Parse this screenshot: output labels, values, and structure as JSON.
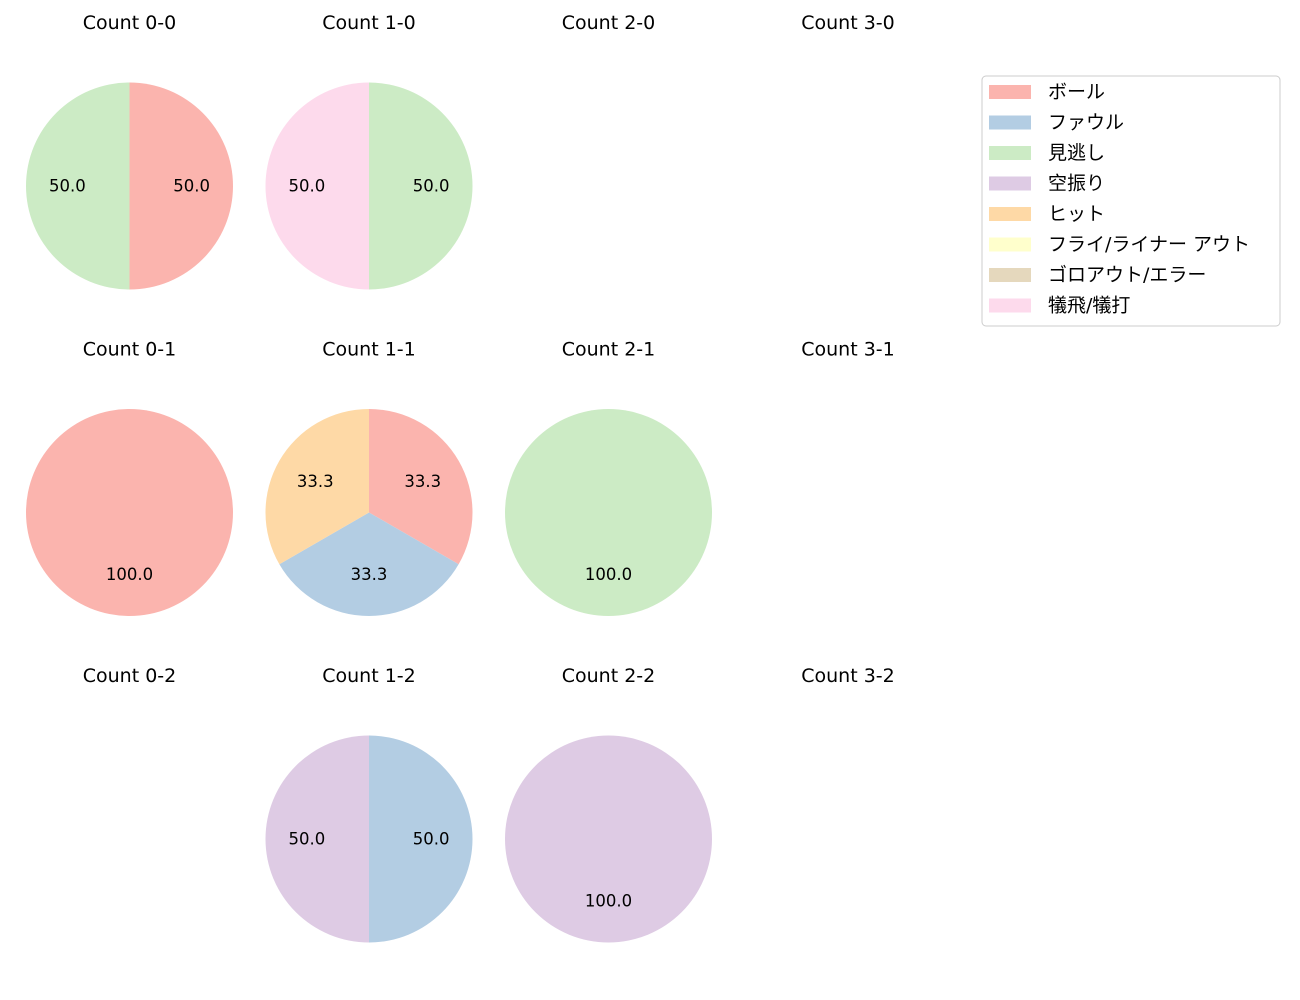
{
  "legend": {
    "placement": "top-right",
    "entries": [
      {
        "label": "ボール",
        "color": "#fbb4ae"
      },
      {
        "label": "ファウル",
        "color": "#b3cde3"
      },
      {
        "label": "見逃し",
        "color": "#ccebc5"
      },
      {
        "label": "空振り",
        "color": "#decbe4"
      },
      {
        "label": "ヒット",
        "color": "#fed9a6"
      },
      {
        "label": "フライ/ライナー アウト",
        "color": "#ffffcc"
      },
      {
        "label": "ゴロアウト/エラー",
        "color": "#e5d8bd"
      },
      {
        "label": "犠飛/犠打",
        "color": "#fddaec"
      }
    ]
  },
  "chart_data": [
    {
      "type": "pie",
      "title": "Count 0-0",
      "slices": [
        {
          "label": "ボール",
          "value": 50.0
        },
        {
          "label": "見逃し",
          "value": 50.0
        }
      ]
    },
    {
      "type": "pie",
      "title": "Count 1-0",
      "slices": [
        {
          "label": "見逃し",
          "value": 50.0
        },
        {
          "label": "犠飛/犠打",
          "value": 50.0
        }
      ]
    },
    {
      "type": "pie",
      "title": "Count 2-0",
      "slices": []
    },
    {
      "type": "pie",
      "title": "Count 3-0",
      "slices": []
    },
    {
      "type": "pie",
      "title": "Count 0-1",
      "slices": [
        {
          "label": "ボール",
          "value": 100.0
        }
      ]
    },
    {
      "type": "pie",
      "title": "Count 1-1",
      "slices": [
        {
          "label": "ボール",
          "value": 33.3
        },
        {
          "label": "ファウル",
          "value": 33.3
        },
        {
          "label": "ヒット",
          "value": 33.3
        }
      ]
    },
    {
      "type": "pie",
      "title": "Count 2-1",
      "slices": [
        {
          "label": "見逃し",
          "value": 100.0
        }
      ]
    },
    {
      "type": "pie",
      "title": "Count 3-1",
      "slices": []
    },
    {
      "type": "pie",
      "title": "Count 0-2",
      "slices": []
    },
    {
      "type": "pie",
      "title": "Count 1-2",
      "slices": [
        {
          "label": "ファウル",
          "value": 50.0
        },
        {
          "label": "空振り",
          "value": 50.0
        }
      ]
    },
    {
      "type": "pie",
      "title": "Count 2-2",
      "slices": [
        {
          "label": "空振り",
          "value": 100.0
        }
      ]
    },
    {
      "type": "pie",
      "title": "Count 3-2",
      "slices": []
    }
  ]
}
